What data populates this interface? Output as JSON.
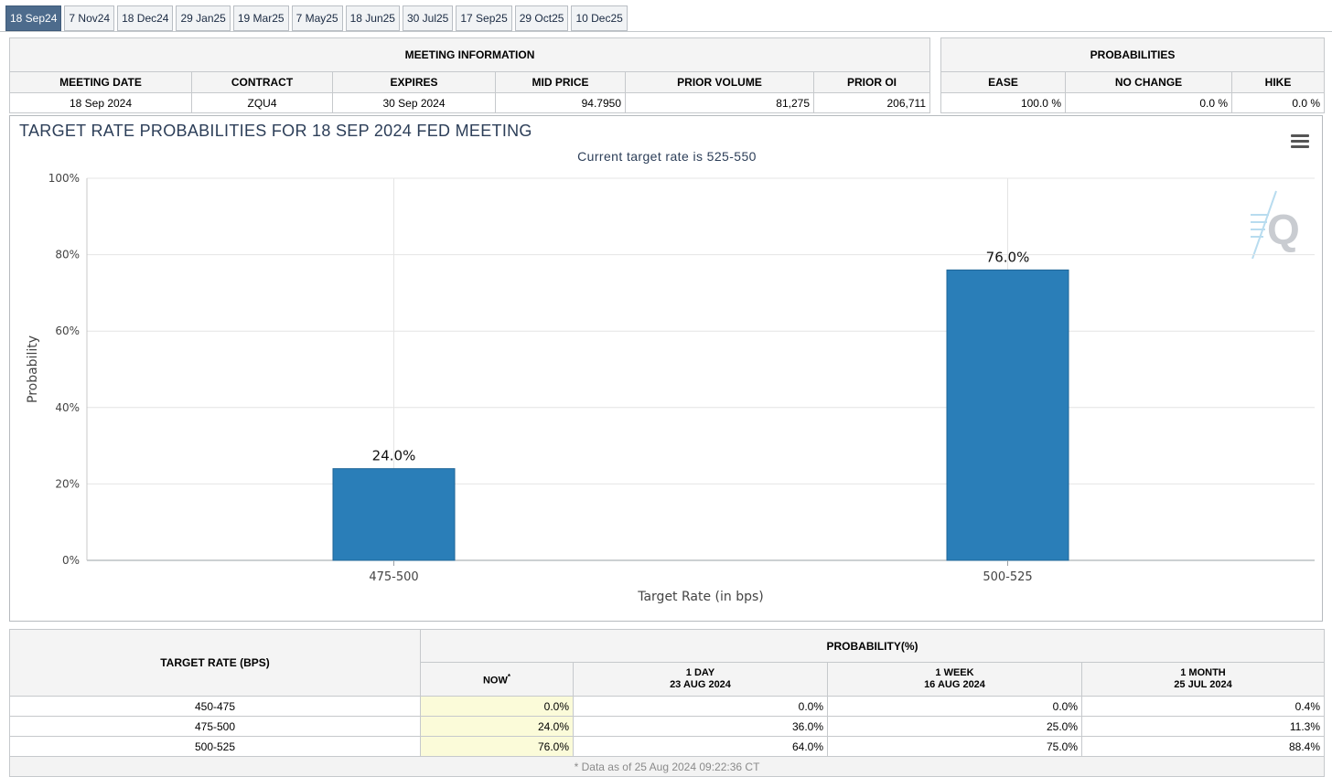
{
  "tabs": [
    {
      "label": "18 Sep24",
      "active": true
    },
    {
      "label": "7 Nov24",
      "active": false
    },
    {
      "label": "18 Dec24",
      "active": false
    },
    {
      "label": "29 Jan25",
      "active": false
    },
    {
      "label": "19 Mar25",
      "active": false
    },
    {
      "label": "7 May25",
      "active": false
    },
    {
      "label": "18 Jun25",
      "active": false
    },
    {
      "label": "30 Jul25",
      "active": false
    },
    {
      "label": "17 Sep25",
      "active": false
    },
    {
      "label": "29 Oct25",
      "active": false
    },
    {
      "label": "10 Dec25",
      "active": false
    }
  ],
  "meeting_info": {
    "title": "MEETING INFORMATION",
    "headers": [
      "MEETING DATE",
      "CONTRACT",
      "EXPIRES",
      "MID PRICE",
      "PRIOR VOLUME",
      "PRIOR OI"
    ],
    "values": [
      "18 Sep 2024",
      "ZQU4",
      "30 Sep 2024",
      "94.7950",
      "81,275",
      "206,711"
    ]
  },
  "probabilities": {
    "title": "PROBABILITIES",
    "headers": [
      "EASE",
      "NO CHANGE",
      "HIKE"
    ],
    "values": [
      "100.0 %",
      "0.0 %",
      "0.0 %"
    ]
  },
  "chart_data": {
    "type": "bar",
    "title": "TARGET RATE PROBABILITIES FOR 18 SEP 2024 FED MEETING",
    "subtitle": "Current target rate is 525-550",
    "xlabel": "Target Rate (in bps)",
    "ylabel": "Probability",
    "categories": [
      "475-500",
      "500-525"
    ],
    "values": [
      24.0,
      76.0
    ],
    "data_labels": [
      "24.0%",
      "76.0%"
    ],
    "ylim": [
      0,
      100
    ],
    "yticks": [
      0,
      20,
      40,
      60,
      80,
      100
    ],
    "ytick_labels": [
      "0%",
      "20%",
      "40%",
      "60%",
      "80%",
      "100%"
    ],
    "grid": true,
    "bar_color": "#2a7eb8"
  },
  "rates_table": {
    "target_header": "TARGET RATE (BPS)",
    "prob_header": "PROBABILITY(%)",
    "columns": [
      {
        "line1": "NOW",
        "sup": "*",
        "line2": ""
      },
      {
        "line1": "1 DAY",
        "sup": "",
        "line2": "23 AUG 2024"
      },
      {
        "line1": "1 WEEK",
        "sup": "",
        "line2": "16 AUG 2024"
      },
      {
        "line1": "1 MONTH",
        "sup": "",
        "line2": "25 JUL 2024"
      }
    ],
    "rows": [
      {
        "rate": "450-475",
        "values": [
          "0.0%",
          "0.0%",
          "0.0%",
          "0.4%"
        ]
      },
      {
        "rate": "475-500",
        "values": [
          "24.0%",
          "36.0%",
          "25.0%",
          "11.3%"
        ]
      },
      {
        "rate": "500-525",
        "values": [
          "76.0%",
          "64.0%",
          "75.0%",
          "88.4%"
        ]
      }
    ],
    "footnote": "* Data as of 25 Aug 2024 09:22:36 CT"
  }
}
